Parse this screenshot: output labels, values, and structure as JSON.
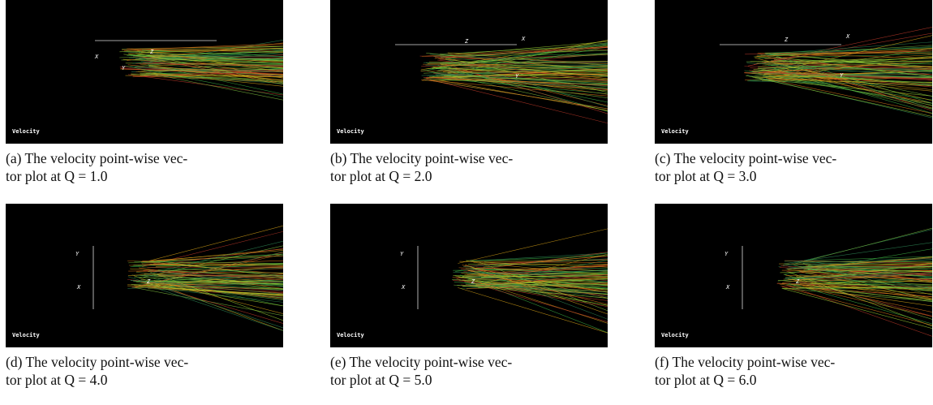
{
  "figures": [
    {
      "label": "Velocity",
      "axes": [
        "X",
        "Y",
        "Z"
      ],
      "caption": [
        "(a) The velocity point-wise vec-",
        "tor plot at Q = 1.0"
      ]
    },
    {
      "label": "Velocity",
      "axes": [
        "X",
        "Y",
        "Z"
      ],
      "caption": [
        "(b) The velocity point-wise vec-",
        "tor plot at Q = 2.0"
      ]
    },
    {
      "label": "Velocity",
      "axes": [
        "X",
        "Y",
        "Z"
      ],
      "caption": [
        "(c) The velocity point-wise vec-",
        "tor plot at Q = 3.0"
      ]
    },
    {
      "label": "Velocity",
      "axes": [
        "X",
        "Y",
        "Z"
      ],
      "caption": [
        "(d) The velocity point-wise vec-",
        "tor plot at Q = 4.0"
      ]
    },
    {
      "label": "Velocity",
      "axes": [
        "X",
        "Y",
        "Z"
      ],
      "caption": [
        "(e) The velocity point-wise vec-",
        "tor plot at Q = 5.0"
      ]
    },
    {
      "label": "Velocity",
      "axes": [
        "X",
        "Y",
        "Z"
      ],
      "caption": [
        "(f) The velocity point-wise vec-",
        "tor plot at Q = 6.0"
      ]
    }
  ]
}
